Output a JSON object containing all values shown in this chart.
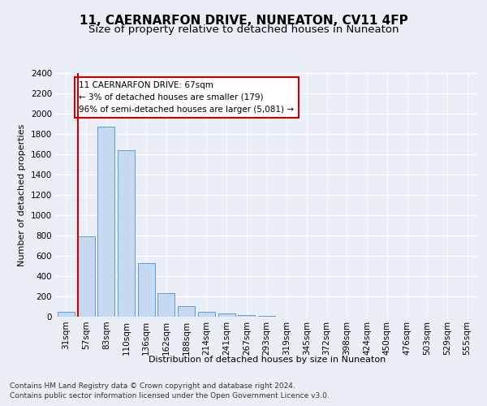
{
  "title": "11, CAERNARFON DRIVE, NUNEATON, CV11 4FP",
  "subtitle": "Size of property relative to detached houses in Nuneaton",
  "xlabel": "Distribution of detached houses by size in Nuneaton",
  "ylabel": "Number of detached properties",
  "categories": [
    "31sqm",
    "57sqm",
    "83sqm",
    "110sqm",
    "136sqm",
    "162sqm",
    "188sqm",
    "214sqm",
    "241sqm",
    "267sqm",
    "293sqm",
    "319sqm",
    "345sqm",
    "372sqm",
    "398sqm",
    "424sqm",
    "450sqm",
    "476sqm",
    "503sqm",
    "529sqm",
    "555sqm"
  ],
  "values": [
    50,
    790,
    1870,
    1640,
    530,
    235,
    105,
    45,
    30,
    15,
    5,
    0,
    0,
    0,
    0,
    0,
    0,
    0,
    0,
    0,
    0
  ],
  "bar_color": "#c6d9f0",
  "bar_edge_color": "#5b9bd5",
  "highlight_bar_index": 1,
  "highlight_color": "#cc0000",
  "annotation_text": "11 CAERNARFON DRIVE: 67sqm\n← 3% of detached houses are smaller (179)\n96% of semi-detached houses are larger (5,081) →",
  "annotation_box_color": "#ffffff",
  "annotation_box_edge_color": "#cc0000",
  "ylim": [
    0,
    2400
  ],
  "yticks": [
    0,
    200,
    400,
    600,
    800,
    1000,
    1200,
    1400,
    1600,
    1800,
    2000,
    2200,
    2400
  ],
  "footer_line1": "Contains HM Land Registry data © Crown copyright and database right 2024.",
  "footer_line2": "Contains public sector information licensed under the Open Government Licence v3.0.",
  "bg_color": "#eaeff7",
  "plot_bg_color": "#eaeff7",
  "title_fontsize": 11,
  "subtitle_fontsize": 9.5,
  "axis_label_fontsize": 8,
  "tick_fontsize": 7.5,
  "annotation_fontsize": 7.5,
  "footer_fontsize": 6.5
}
